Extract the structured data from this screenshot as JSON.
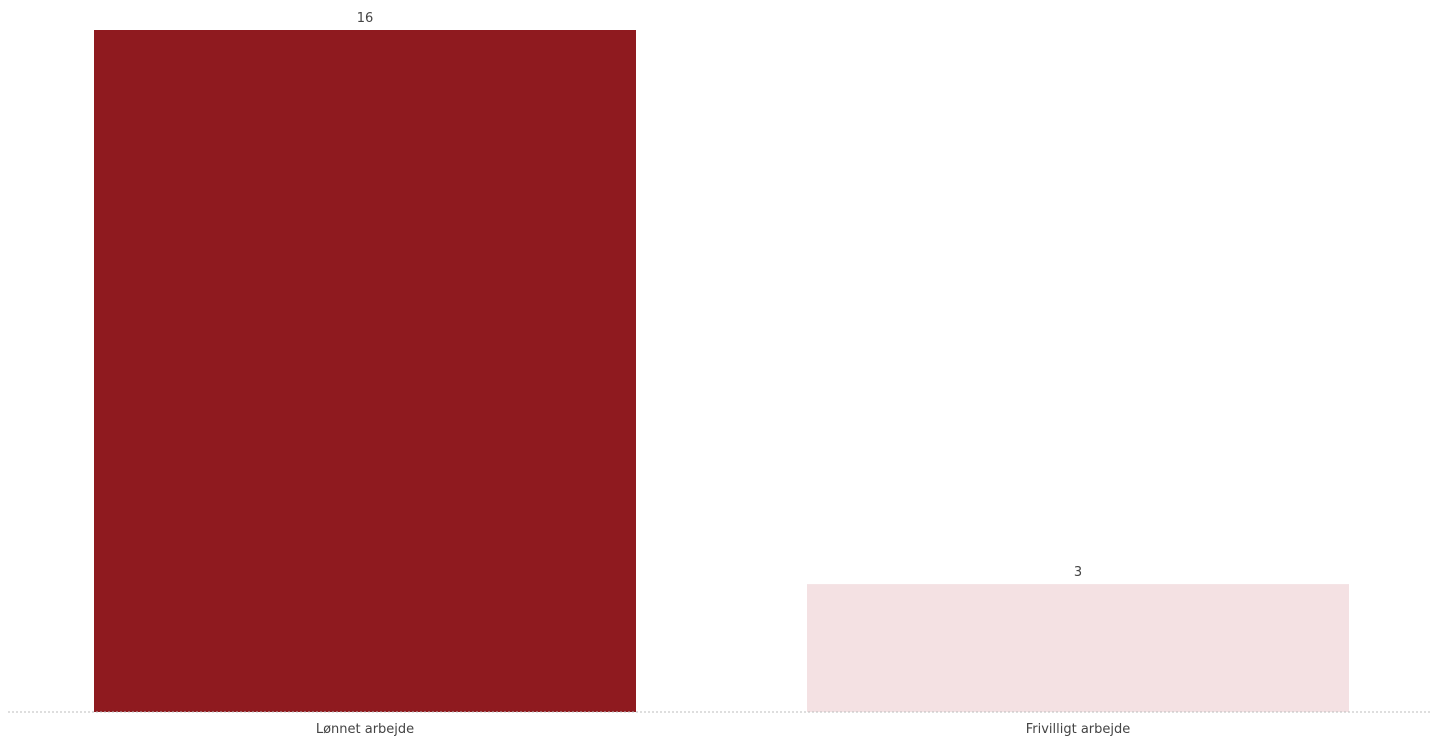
{
  "chart_data": {
    "type": "bar",
    "title": "",
    "xlabel": "",
    "ylabel": "",
    "categories": [
      "Lønnet arbejde",
      "Frivilligt arbejde"
    ],
    "values": [
      16,
      3
    ],
    "data_labels": [
      "16",
      "3"
    ],
    "ylim": [
      0,
      16
    ],
    "grid": false,
    "legend": "none",
    "bar_colors": [
      "#8f1a1f",
      "#f4e1e3"
    ],
    "baseline_color": "#bdbdbd"
  }
}
